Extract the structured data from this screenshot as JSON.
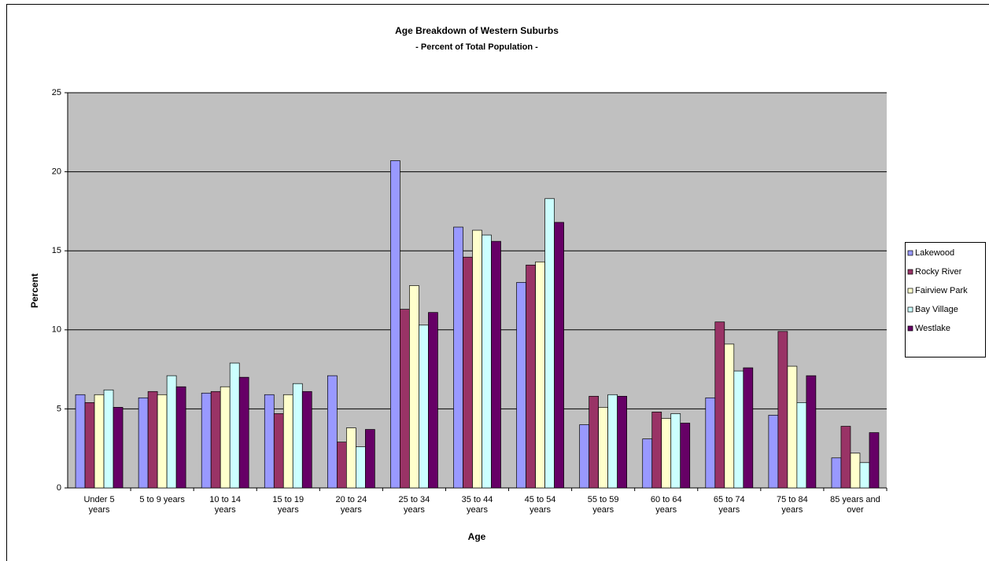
{
  "chart_data": {
    "type": "bar",
    "title": "Age Breakdown of Western Suburbs",
    "subtitle": "- Percent of Total Population -",
    "x_label": "Age",
    "y_label": "Percent",
    "categories": [
      "Under 5 years",
      "5 to 9 years",
      "10 to 14 years",
      "15 to 19 years",
      "20 to 24 years",
      "25 to 34 years",
      "35 to 44 years",
      "45 to 54 years",
      "55 to 59 years",
      "60 to 64 years",
      "65 to 74 years",
      "75 to 84 years",
      "85 years and over"
    ],
    "series": [
      {
        "name": "Lakewood",
        "color": "#9999ff",
        "values": [
          5.9,
          5.7,
          6.0,
          5.9,
          7.1,
          20.7,
          16.5,
          13.0,
          4.0,
          3.1,
          5.7,
          4.6,
          1.9
        ]
      },
      {
        "name": "Rocky River",
        "color": "#993366",
        "values": [
          5.4,
          6.1,
          6.1,
          4.7,
          2.9,
          11.3,
          14.6,
          14.1,
          5.8,
          4.8,
          10.5,
          9.9,
          3.9
        ]
      },
      {
        "name": "Fairview Park",
        "color": "#ffffcc",
        "values": [
          5.9,
          5.9,
          6.4,
          5.9,
          3.8,
          12.8,
          16.3,
          14.3,
          5.1,
          4.4,
          9.1,
          7.7,
          2.2
        ]
      },
      {
        "name": "Bay Village",
        "color": "#ccffff",
        "values": [
          6.2,
          7.1,
          7.9,
          6.6,
          2.6,
          10.3,
          16.0,
          18.3,
          5.9,
          4.7,
          7.4,
          5.4,
          1.6
        ]
      },
      {
        "name": "Westlake",
        "color": "#660066",
        "values": [
          5.1,
          6.4,
          7.0,
          6.1,
          3.7,
          11.1,
          15.6,
          16.8,
          5.8,
          4.1,
          7.6,
          7.1,
          3.5
        ]
      }
    ],
    "ylim": [
      0,
      25
    ],
    "yticks": [
      0,
      5,
      10,
      15,
      20,
      25
    ],
    "grid": true,
    "legend": "right"
  }
}
